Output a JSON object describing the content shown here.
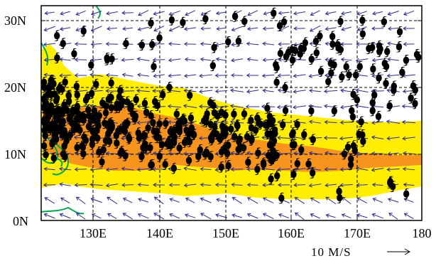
{
  "figure": {
    "lat_labels": [
      "30N",
      "20N",
      "10N",
      "0N"
    ],
    "lon_labels": [
      "130E",
      "140E",
      "150E",
      "160E",
      "170E",
      "180"
    ],
    "lat_range": [
      0,
      31
    ],
    "lon_range": [
      122,
      180
    ],
    "gridlines": "dashed",
    "reference_vector": {
      "label": "10 M/S",
      "arrow": "→"
    },
    "colors": {
      "outer_shading": "#ffee00",
      "inner_shading": "#f7941d",
      "coastline": "#00a650",
      "wind_vectors": "#2b2b8c",
      "typhoon_symbols": "#000000"
    },
    "layers": [
      "yellow shading (outer region)",
      "orange shading (core region)",
      "green coastline",
      "wind vectors",
      "tropical cyclone genesis symbols"
    ],
    "symbol_icon": "typhoon-icon"
  }
}
